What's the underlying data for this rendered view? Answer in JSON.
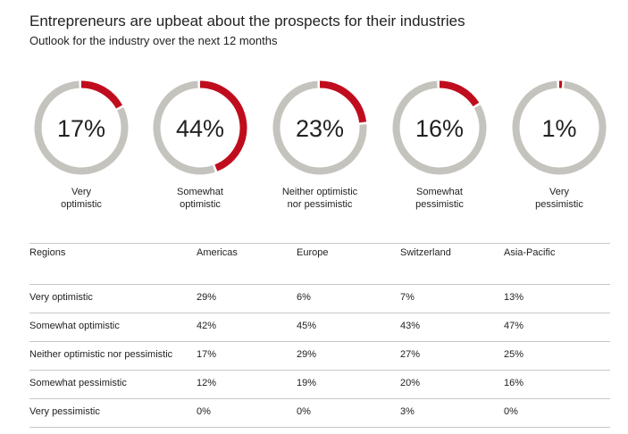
{
  "header": {
    "title": "Entrepreneurs are upbeat about the prospects for their industries",
    "subtitle": "Outlook for the industry over the next 12 months"
  },
  "colors": {
    "accent": "#c00d1e",
    "track": "#c5c3bd"
  },
  "chart_data": [
    {
      "type": "pie",
      "variant": "donut",
      "slices": [
        {
          "pct_label": "17%",
          "value": 17,
          "label": [
            "Very",
            "optimistic"
          ]
        },
        {
          "pct_label": "44%",
          "value": 44,
          "label": [
            "Somewhat",
            "optimistic"
          ]
        },
        {
          "pct_label": "23%",
          "value": 23,
          "label": [
            "Neither optimistic",
            "nor pessimistic"
          ]
        },
        {
          "pct_label": "16%",
          "value": 16,
          "label": [
            "Somewhat",
            "pessimistic"
          ]
        },
        {
          "pct_label": "1%",
          "value": 1,
          "label": [
            "Very",
            "pessimistic"
          ]
        }
      ]
    },
    {
      "type": "table",
      "columns": [
        "Regions",
        "Americas",
        "Europe",
        "Switzerland",
        "Asia-Pacific"
      ],
      "rows": [
        [
          "Very optimistic",
          "29%",
          "6%",
          "7%",
          "13%"
        ],
        [
          "Somewhat optimistic",
          "42%",
          "45%",
          "43%",
          "47%"
        ],
        [
          "Neither optimistic nor pessimistic",
          "17%",
          "29%",
          "27%",
          "25%"
        ],
        [
          "Somewhat pessimistic",
          "12%",
          "19%",
          "20%",
          "16%"
        ],
        [
          "Very pessimistic",
          "0%",
          "0%",
          "3%",
          "0%"
        ]
      ]
    }
  ]
}
